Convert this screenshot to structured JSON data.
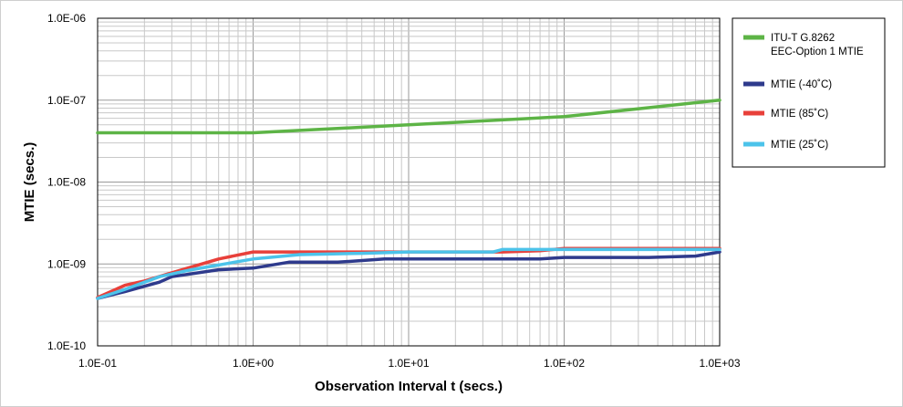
{
  "chart_data": {
    "type": "line",
    "xlabel": "Observation Interval t (secs.)",
    "ylabel": "MTIE (secs.)",
    "x_scale": "log",
    "y_scale": "log",
    "xlim": [
      0.1,
      1000
    ],
    "ylim": [
      1e-10,
      1e-06
    ],
    "grid": true,
    "legend_position": "right",
    "x_tick_values": [
      0.1,
      1,
      10,
      100,
      1000
    ],
    "x_tick_labels": [
      "1.0E-01",
      "1.0E+00",
      "1.0E+01",
      "1.0E+02",
      "1.0E+03"
    ],
    "y_tick_values": [
      1e-06,
      1e-07,
      1e-08,
      1e-09,
      1e-10
    ],
    "y_tick_labels": [
      "1.0E-06",
      "1.0E-07",
      "1.0E-08",
      "1.0E-09",
      "1.0E-10"
    ],
    "series": [
      {
        "name": "ITU-T G.8262 EEC-Option 1 MTIE",
        "legend_lines": [
          "ITU-T G.8262",
          "EEC-Option 1 MTIE"
        ],
        "color": "#5db446",
        "points": [
          [
            0.1,
            4e-08
          ],
          [
            1,
            4e-08
          ],
          [
            10,
            5e-08
          ],
          [
            100,
            6.3e-08
          ],
          [
            1000,
            1e-07
          ]
        ]
      },
      {
        "name": "MTIE (-40˚C)",
        "legend_lines": [
          "MTIE (-40˚C)"
        ],
        "color": "#2e3a8c",
        "points": [
          [
            0.1,
            3.8e-10
          ],
          [
            0.15,
            4.6e-10
          ],
          [
            0.25,
            6e-10
          ],
          [
            0.3,
            7e-10
          ],
          [
            0.6,
            8.5e-10
          ],
          [
            1,
            8.9e-10
          ],
          [
            1.7,
            1.05e-09
          ],
          [
            3.5,
            1.05e-09
          ],
          [
            7,
            1.15e-09
          ],
          [
            70,
            1.15e-09
          ],
          [
            100,
            1.2e-09
          ],
          [
            350,
            1.2e-09
          ],
          [
            700,
            1.25e-09
          ],
          [
            1000,
            1.4e-09
          ]
        ]
      },
      {
        "name": "MTIE (85˚C)",
        "legend_lines": [
          "MTIE (85˚C)"
        ],
        "color": "#e8403a",
        "points": [
          [
            0.1,
            3.9e-10
          ],
          [
            0.15,
            5.5e-10
          ],
          [
            0.2,
            6.2e-10
          ],
          [
            0.3,
            7.8e-10
          ],
          [
            0.6,
            1.15e-09
          ],
          [
            1,
            1.4e-09
          ],
          [
            2,
            1.4e-09
          ],
          [
            5,
            1.4e-09
          ],
          [
            10,
            1.4e-09
          ],
          [
            40,
            1.4e-09
          ],
          [
            70,
            1.45e-09
          ],
          [
            100,
            1.55e-09
          ],
          [
            1000,
            1.55e-09
          ]
        ]
      },
      {
        "name": "MTIE (25˚C)",
        "legend_lines": [
          "MTIE (25˚C)"
        ],
        "color": "#4cc3ea",
        "points": [
          [
            0.1,
            3.8e-10
          ],
          [
            0.15,
            4.9e-10
          ],
          [
            0.25,
            7e-10
          ],
          [
            0.4,
            8.5e-10
          ],
          [
            1,
            1.15e-09
          ],
          [
            2,
            1.3e-09
          ],
          [
            5,
            1.35e-09
          ],
          [
            10,
            1.4e-09
          ],
          [
            35,
            1.4e-09
          ],
          [
            40,
            1.5e-09
          ],
          [
            1000,
            1.5e-09
          ]
        ]
      }
    ]
  }
}
